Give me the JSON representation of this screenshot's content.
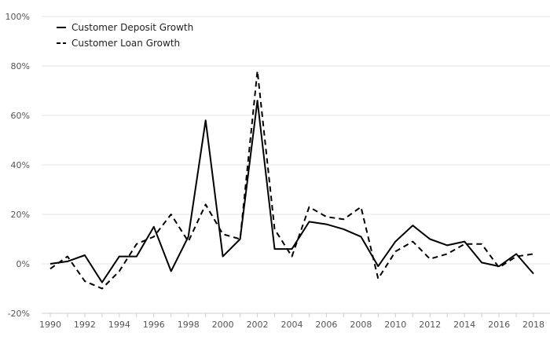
{
  "chart_data": {
    "type": "line",
    "title": "",
    "xlabel": "",
    "ylabel": "",
    "ylim": [
      -20,
      100
    ],
    "y_ticks": [
      -20,
      0,
      20,
      40,
      60,
      80,
      100
    ],
    "y_tick_suffix": "%",
    "x_ticks": [
      1990,
      1992,
      1994,
      1996,
      1998,
      2000,
      2002,
      2004,
      2006,
      2008,
      2010,
      2012,
      2014,
      2016,
      2018
    ],
    "xlim": [
      1989.5,
      2018.5
    ],
    "grid": true,
    "legend_position": "top-left",
    "x": [
      1990,
      1991,
      1992,
      1993,
      1994,
      1995,
      1996,
      1997,
      1998,
      1999,
      2000,
      2001,
      2002,
      2003,
      2004,
      2005,
      2006,
      2007,
      2008,
      2009,
      2010,
      2011,
      2012,
      2013,
      2014,
      2015,
      2016,
      2017,
      2018
    ],
    "series": [
      {
        "name": "Customer Deposit Growth",
        "style": "solid",
        "color": "#000000",
        "values": [
          0,
          1,
          3.5,
          -7.5,
          3,
          3,
          15,
          -3,
          11,
          58,
          3,
          10,
          66,
          6,
          6,
          17,
          16,
          14,
          11,
          -1,
          9,
          15.5,
          10,
          7.5,
          9,
          0.5,
          -1,
          4,
          -4
        ]
      },
      {
        "name": "Customer Loan Growth",
        "style": "dashed",
        "color": "#000000",
        "values": [
          -2,
          3,
          -7,
          -10,
          -3,
          8,
          11,
          20,
          9,
          24,
          12,
          10,
          78,
          14,
          3,
          23,
          19,
          18,
          23,
          -6,
          5,
          9,
          2,
          4,
          8,
          8,
          -1.5,
          3,
          4
        ]
      }
    ]
  }
}
